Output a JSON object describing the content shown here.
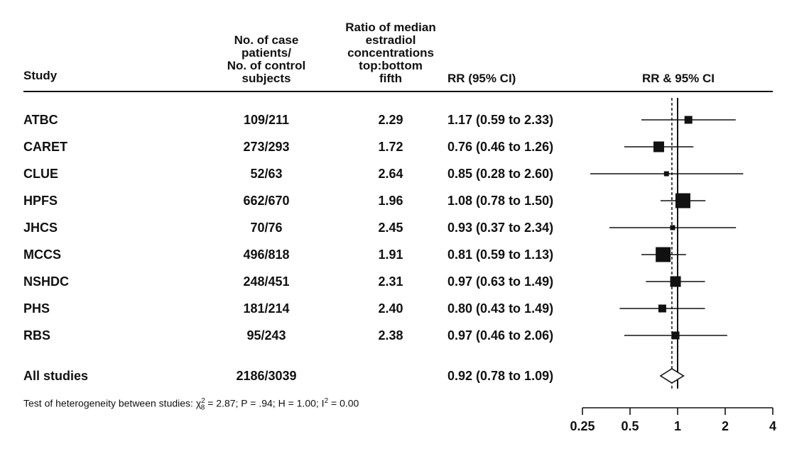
{
  "headers": {
    "study": "Study",
    "n_pairs": [
      "No. of case",
      "patients/",
      "No. of control",
      "subjects"
    ],
    "ratio": [
      "Ratio of median",
      "estradiol",
      "concentrations",
      "top:bottom",
      "fifth"
    ],
    "rr": "RR (95% CI)",
    "plot": "RR & 95% CI"
  },
  "rows": [
    {
      "study": "ATBC",
      "n": "109/211",
      "ratio": "2.29",
      "rr_text": "1.17 (0.59 to 2.33)"
    },
    {
      "study": "CARET",
      "n": "273/293",
      "ratio": "1.72",
      "rr_text": "0.76 (0.46 to 1.26)"
    },
    {
      "study": "CLUE",
      "n": "52/63",
      "ratio": "2.64",
      "rr_text": "0.85 (0.28 to 2.60)"
    },
    {
      "study": "HPFS",
      "n": "662/670",
      "ratio": "1.96",
      "rr_text": "1.08 (0.78 to 1.50)"
    },
    {
      "study": "JHCS",
      "n": "70/76",
      "ratio": "2.45",
      "rr_text": "0.93 (0.37 to 2.34)"
    },
    {
      "study": "MCCS",
      "n": "496/818",
      "ratio": "1.91",
      "rr_text": "0.81 (0.59 to 1.13)"
    },
    {
      "study": "NSHDC",
      "n": "248/451",
      "ratio": "2.31",
      "rr_text": "0.97 (0.63 to 1.49)"
    },
    {
      "study": "PHS",
      "n": "181/214",
      "ratio": "2.40",
      "rr_text": "0.80 (0.43 to 1.49)"
    },
    {
      "study": "RBS",
      "n": "95/243",
      "ratio": "2.38",
      "rr_text": "0.97 (0.46 to 2.06)"
    }
  ],
  "summary": {
    "study": "All studies",
    "n": "2186/3039",
    "ratio": "",
    "rr_text": "0.92 (0.78 to 1.09)"
  },
  "footnote": {
    "prefix": "Test of heterogeneity between studies: ",
    "chi": "χ",
    "chi_sub": "8",
    "chi_sup": "2",
    "mid": " = 2.87; P = .94; H = 1.00; I",
    "i_sup": "2",
    "suffix": " = 0.00"
  },
  "chart_data": {
    "type": "forest",
    "xscale": "log",
    "xlim": [
      0.25,
      4
    ],
    "xticks": [
      0.25,
      0.5,
      1,
      2,
      4
    ],
    "xtick_labels": [
      "0.25",
      "0.5",
      "1",
      "2",
      "4"
    ],
    "reference_line": 1,
    "pooled_line": 0.92,
    "studies": [
      {
        "name": "ATBC",
        "rr": 1.17,
        "lo": 0.59,
        "hi": 2.33,
        "weight_marker": "small"
      },
      {
        "name": "CARET",
        "rr": 0.76,
        "lo": 0.46,
        "hi": 1.26,
        "weight_marker": "medium"
      },
      {
        "name": "CLUE",
        "rr": 0.85,
        "lo": 0.28,
        "hi": 2.6,
        "weight_marker": "tiny"
      },
      {
        "name": "HPFS",
        "rr": 1.08,
        "lo": 0.78,
        "hi": 1.5,
        "weight_marker": "large"
      },
      {
        "name": "JHCS",
        "rr": 0.93,
        "lo": 0.37,
        "hi": 2.34,
        "weight_marker": "tiny"
      },
      {
        "name": "MCCS",
        "rr": 0.81,
        "lo": 0.59,
        "hi": 1.13,
        "weight_marker": "large"
      },
      {
        "name": "NSHDC",
        "rr": 0.97,
        "lo": 0.63,
        "hi": 1.49,
        "weight_marker": "medium"
      },
      {
        "name": "PHS",
        "rr": 0.8,
        "lo": 0.43,
        "hi": 1.49,
        "weight_marker": "small"
      },
      {
        "name": "RBS",
        "rr": 0.97,
        "lo": 0.46,
        "hi": 2.06,
        "weight_marker": "small"
      }
    ],
    "pooled": {
      "name": "All studies",
      "rr": 0.92,
      "lo": 0.78,
      "hi": 1.09
    },
    "grid": false
  }
}
